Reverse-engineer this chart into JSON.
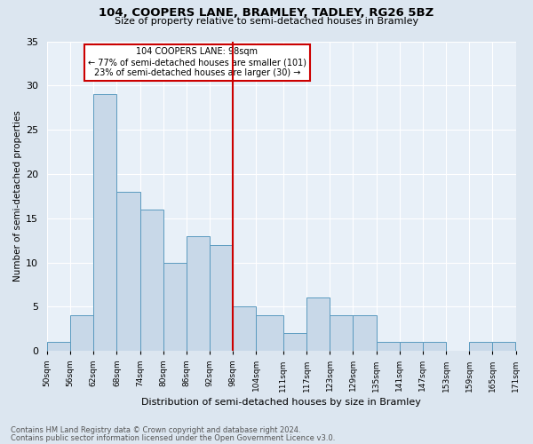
{
  "title": "104, COOPERS LANE, BRAMLEY, TADLEY, RG26 5BZ",
  "subtitle": "Size of property relative to semi-detached houses in Bramley",
  "xlabel": "Distribution of semi-detached houses by size in Bramley",
  "ylabel": "Number of semi-detached properties",
  "footnote1": "Contains HM Land Registry data © Crown copyright and database right 2024.",
  "footnote2": "Contains public sector information licensed under the Open Government Licence v3.0.",
  "annotation_line1": "104 COOPERS LANE: 98sqm",
  "annotation_line2": "← 77% of semi-detached houses are smaller (101)",
  "annotation_line3": "23% of semi-detached houses are larger (30) →",
  "bar_edges": [
    50,
    56,
    62,
    68,
    74,
    80,
    86,
    92,
    98,
    104,
    111,
    117,
    123,
    129,
    135,
    141,
    147,
    153,
    159,
    165,
    171
  ],
  "bar_heights": [
    1,
    4,
    29,
    18,
    16,
    10,
    13,
    12,
    5,
    4,
    2,
    6,
    4,
    4,
    1,
    1,
    1,
    0,
    1,
    1
  ],
  "bar_color": "#c8d8e8",
  "bar_edgecolor": "#5a9abf",
  "vline_x": 98,
  "vline_color": "#cc0000",
  "box_color": "#cc0000",
  "ylim": [
    0,
    35
  ],
  "tick_labels": [
    "50sqm",
    "56sqm",
    "62sqm",
    "68sqm",
    "74sqm",
    "80sqm",
    "86sqm",
    "92sqm",
    "98sqm",
    "104sqm",
    "111sqm",
    "117sqm",
    "123sqm",
    "129sqm",
    "135sqm",
    "141sqm",
    "147sqm",
    "153sqm",
    "159sqm",
    "165sqm",
    "171sqm"
  ],
  "bg_color": "#dce6f0",
  "plot_bg_color": "#e8f0f8",
  "title_fontsize": 9.5,
  "subtitle_fontsize": 8,
  "ylabel_fontsize": 7.5,
  "xlabel_fontsize": 8,
  "tick_fontsize": 6.5,
  "annotation_fontsize": 7,
  "footnote_fontsize": 6
}
